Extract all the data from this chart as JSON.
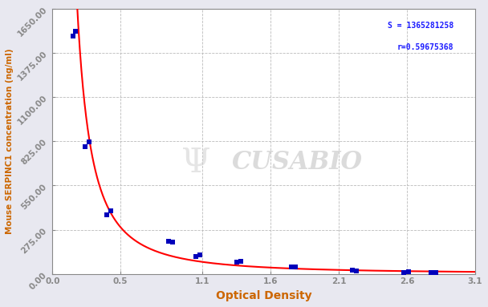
{
  "xlabel": "Optical Density",
  "ylabel": "Mouse SERPINC1 concentration (ng/ml)",
  "s_param": "S = 1365281258",
  "r_param": "r=0.59675368",
  "scatter_pairs": [
    [
      0.15,
      1480
    ],
    [
      0.17,
      1510
    ],
    [
      0.24,
      790
    ],
    [
      0.27,
      820
    ],
    [
      0.4,
      365
    ],
    [
      0.43,
      390
    ],
    [
      0.85,
      205
    ],
    [
      0.88,
      198
    ],
    [
      1.05,
      110
    ],
    [
      1.08,
      118
    ],
    [
      1.35,
      75
    ],
    [
      1.38,
      80
    ],
    [
      1.75,
      42
    ],
    [
      1.78,
      45
    ],
    [
      2.2,
      22
    ],
    [
      2.23,
      20
    ],
    [
      2.58,
      10
    ],
    [
      2.61,
      12
    ],
    [
      2.78,
      8
    ],
    [
      2.81,
      8
    ]
  ],
  "xlim": [
    0.0,
    3.1
  ],
  "ylim": [
    0.0,
    1650.0
  ],
  "xticks": [
    0.0,
    0.5,
    1.1,
    1.6,
    2.1,
    2.6,
    3.1
  ],
  "yticks": [
    0.0,
    275.0,
    550.0,
    825.0,
    1100.0,
    1375.0,
    1650.0
  ],
  "curve_color": "#ff0000",
  "scatter_color": "#0000bb",
  "bg_color": "#e8e8f0",
  "plot_bg_color": "#ffffff",
  "grid_color": "#bbbbbb",
  "annotation_color": "#1a1aff",
  "watermark_text": "CUSABIO",
  "scatter_marker": "s",
  "scatter_size": 18,
  "curve_lw": 1.5
}
